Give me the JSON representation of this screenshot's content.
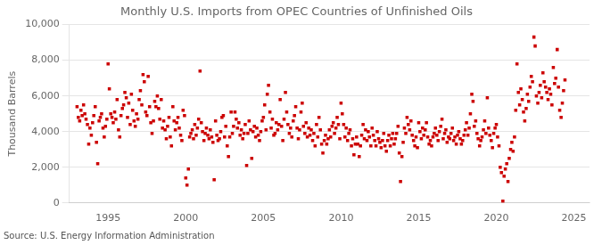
{
  "chart_data": {
    "type": "scatter",
    "title": "Monthly U.S. Imports from OPEC Countries of Unfinished Oils",
    "ylabel": "Thousand Barrels",
    "annotation": "Source: U.S. Energy Information Administration",
    "color": "#CC0000",
    "marker": "square",
    "grid": "y",
    "xlim": [
      1992.5,
      2026.0
    ],
    "xticks": [
      1995,
      2000,
      2005,
      2010,
      2015,
      2020,
      2025
    ],
    "ylim": [
      0,
      10000
    ],
    "yticks": [
      0,
      {
        "value": 2000,
        "label": "2,000"
      },
      {
        "value": 4000,
        "label": "4,000"
      },
      {
        "value": 6000,
        "label": "6,000"
      },
      {
        "value": 8000,
        "label": "8,000"
      },
      {
        "value": 10000,
        "label": "10,000"
      }
    ],
    "x": [
      1993.0,
      1993.08,
      1993.17,
      1993.25,
      1993.33,
      1993.42,
      1993.5,
      1993.58,
      1993.67,
      1993.75,
      1993.83,
      1993.92,
      1994.0,
      1994.08,
      1994.17,
      1994.25,
      1994.33,
      1994.42,
      1994.5,
      1994.58,
      1994.67,
      1994.75,
      1994.83,
      1994.92,
      1995.0,
      1995.08,
      1995.17,
      1995.25,
      1995.33,
      1995.42,
      1995.5,
      1995.58,
      1995.67,
      1995.75,
      1995.83,
      1995.92,
      1996.0,
      1996.08,
      1996.17,
      1996.25,
      1996.33,
      1996.42,
      1996.5,
      1996.58,
      1996.67,
      1996.75,
      1996.83,
      1996.92,
      1997.0,
      1997.08,
      1997.17,
      1997.25,
      1997.33,
      1997.42,
      1997.5,
      1997.58,
      1997.67,
      1997.75,
      1997.83,
      1997.92,
      1998.0,
      1998.08,
      1998.17,
      1998.25,
      1998.33,
      1998.42,
      1998.5,
      1998.58,
      1998.67,
      1998.75,
      1998.83,
      1998.92,
      1999.0,
      1999.08,
      1999.17,
      1999.25,
      1999.33,
      1999.42,
      1999.5,
      1999.58,
      1999.67,
      1999.75,
      1999.83,
      1999.92,
      2000.0,
      2000.08,
      2000.17,
      2000.25,
      2000.33,
      2000.42,
      2000.5,
      2000.58,
      2000.67,
      2000.75,
      2000.83,
      2000.92,
      2001.0,
      2001.08,
      2001.17,
      2001.25,
      2001.33,
      2001.42,
      2001.5,
      2001.58,
      2001.67,
      2001.75,
      2001.83,
      2001.92,
      2002.0,
      2002.08,
      2002.17,
      2002.25,
      2002.33,
      2002.42,
      2002.5,
      2002.58,
      2002.67,
      2002.75,
      2002.83,
      2002.92,
      2003.0,
      2003.08,
      2003.17,
      2003.25,
      2003.33,
      2003.42,
      2003.5,
      2003.58,
      2003.67,
      2003.75,
      2003.83,
      2003.92,
      2004.0,
      2004.08,
      2004.17,
      2004.25,
      2004.33,
      2004.42,
      2004.5,
      2004.58,
      2004.67,
      2004.75,
      2004.83,
      2004.92,
      2005.0,
      2005.08,
      2005.17,
      2005.25,
      2005.33,
      2005.42,
      2005.5,
      2005.58,
      2005.67,
      2005.75,
      2005.83,
      2005.92,
      2006.0,
      2006.08,
      2006.17,
      2006.25,
      2006.33,
      2006.42,
      2006.5,
      2006.58,
      2006.67,
      2006.75,
      2006.83,
      2006.92,
      2007.0,
      2007.08,
      2007.17,
      2007.25,
      2007.33,
      2007.42,
      2007.5,
      2007.58,
      2007.67,
      2007.75,
      2007.83,
      2007.92,
      2008.0,
      2008.08,
      2008.17,
      2008.25,
      2008.33,
      2008.42,
      2008.5,
      2008.58,
      2008.67,
      2008.75,
      2008.83,
      2008.92,
      2009.0,
      2009.08,
      2009.17,
      2009.25,
      2009.33,
      2009.42,
      2009.5,
      2009.58,
      2009.67,
      2009.75,
      2009.83,
      2009.92,
      2010.0,
      2010.08,
      2010.17,
      2010.25,
      2010.33,
      2010.42,
      2010.5,
      2010.58,
      2010.67,
      2010.75,
      2010.83,
      2010.92,
      2011.0,
      2011.08,
      2011.17,
      2011.25,
      2011.33,
      2011.42,
      2011.5,
      2011.58,
      2011.67,
      2011.75,
      2011.83,
      2011.92,
      2012.0,
      2012.08,
      2012.17,
      2012.25,
      2012.33,
      2012.42,
      2012.5,
      2012.58,
      2012.67,
      2012.75,
      2012.83,
      2012.92,
      2013.0,
      2013.08,
      2013.17,
      2013.25,
      2013.33,
      2013.42,
      2013.5,
      2013.58,
      2013.67,
      2013.75,
      2013.83,
      2013.92,
      2014.0,
      2014.08,
      2014.17,
      2014.25,
      2014.33,
      2014.42,
      2014.5,
      2014.58,
      2014.67,
      2014.75,
      2014.83,
      2014.92,
      2015.0,
      2015.08,
      2015.17,
      2015.25,
      2015.33,
      2015.42,
      2015.5,
      2015.58,
      2015.67,
      2015.75,
      2015.83,
      2015.92,
      2016.0,
      2016.08,
      2016.17,
      2016.25,
      2016.33,
      2016.42,
      2016.5,
      2016.58,
      2016.67,
      2016.75,
      2016.83,
      2016.92,
      2017.0,
      2017.08,
      2017.17,
      2017.25,
      2017.33,
      2017.42,
      2017.5,
      2017.58,
      2017.67,
      2017.75,
      2017.83,
      2017.92,
      2018.0,
      2018.08,
      2018.17,
      2018.25,
      2018.33,
      2018.42,
      2018.5,
      2018.58,
      2018.67,
      2018.75,
      2018.83,
      2018.92,
      2019.0,
      2019.08,
      2019.17,
      2019.25,
      2019.33,
      2019.42,
      2019.5,
      2019.58,
      2019.67,
      2019.75,
      2019.83,
      2019.92,
      2020.0,
      2020.08,
      2020.17,
      2020.25,
      2020.33,
      2020.42,
      2020.5,
      2020.58,
      2020.67,
      2020.75,
      2020.83,
      2020.92,
      2021.0,
      2021.08,
      2021.17,
      2021.25,
      2021.33,
      2021.42,
      2021.5,
      2021.58,
      2021.67,
      2021.75,
      2021.83,
      2021.92,
      2022.0,
      2022.08,
      2022.17,
      2022.25,
      2022.33,
      2022.42,
      2022.5,
      2022.58,
      2022.67,
      2022.75,
      2022.83,
      2022.92,
      2023.0,
      2023.08,
      2023.17,
      2023.25,
      2023.33,
      2023.42,
      2023.5,
      2023.58,
      2023.67,
      2023.75,
      2023.83,
      2023.92,
      2024.0,
      2024.08,
      2024.17,
      2024.25,
      2024.33,
      2024.42
    ],
    "values": [
      5400,
      4800,
      4600,
      5200,
      4900,
      5500,
      5000,
      4700,
      4400,
      3300,
      4200,
      3800,
      4500,
      4900,
      5400,
      3400,
      2200,
      4600,
      4800,
      5000,
      4200,
      3700,
      4300,
      4700,
      7800,
      6400,
      5000,
      4800,
      4500,
      5100,
      4700,
      5800,
      4100,
      3700,
      4900,
      5300,
      5500,
      6200,
      5900,
      4800,
      5600,
      4400,
      6100,
      5200,
      4600,
      4300,
      5000,
      4700,
      5800,
      6300,
      5500,
      7200,
      6800,
      5100,
      4900,
      7100,
      5400,
      4500,
      3900,
      4600,
      5700,
      5400,
      6000,
      5300,
      4700,
      5800,
      4200,
      4600,
      4100,
      3600,
      4300,
      4800,
      3700,
      3200,
      5400,
      4600,
      4100,
      4500,
      4800,
      4200,
      3800,
      3500,
      5200,
      4900,
      1400,
      1000,
      1900,
      3700,
      3900,
      4100,
      3600,
      4400,
      3800,
      4200,
      4700,
      7400,
      4500,
      4000,
      3500,
      3900,
      4200,
      3800,
      3600,
      4100,
      3700,
      3400,
      1300,
      4600,
      3800,
      3500,
      3600,
      4000,
      4800,
      4900,
      3700,
      4300,
      3200,
      2600,
      3700,
      5100,
      3900,
      4300,
      5100,
      4700,
      4200,
      4500,
      3800,
      4100,
      3600,
      3900,
      4400,
      2100,
      3900,
      4600,
      4100,
      2500,
      4000,
      4300,
      3700,
      4200,
      3800,
      3500,
      4000,
      4600,
      4800,
      5500,
      4100,
      6100,
      6600,
      5100,
      4200,
      4700,
      3800,
      3900,
      4500,
      4100,
      4400,
      5800,
      4300,
      3500,
      4700,
      6200,
      5100,
      4400,
      3900,
      4200,
      3700,
      4600,
      4900,
      5400,
      4200,
      3600,
      4100,
      5100,
      5600,
      4300,
      3900,
      4500,
      3700,
      4200,
      3800,
      4100,
      3500,
      3900,
      3200,
      4400,
      3700,
      4800,
      4100,
      3300,
      2800,
      3500,
      3800,
      3300,
      3600,
      4100,
      3700,
      4300,
      4500,
      3900,
      4200,
      4800,
      4400,
      3600,
      5600,
      5000,
      4400,
      3700,
      4200,
      3500,
      3900,
      4100,
      3200,
      3600,
      2700,
      3300,
      3700,
      3300,
      2600,
      3200,
      3800,
      4400,
      3600,
      4100,
      3500,
      4000,
      3700,
      3200,
      4200,
      3800,
      3500,
      3200,
      4000,
      3600,
      3400,
      3100,
      3500,
      3900,
      3200,
      2900,
      3500,
      3800,
      3200,
      3600,
      3900,
      3300,
      3600,
      3900,
      4300,
      2800,
      1200,
      2600,
      3400,
      4200,
      3900,
      4800,
      4400,
      4100,
      4600,
      3800,
      3500,
      3200,
      3700,
      3100,
      4500,
      4000,
      3600,
      4200,
      3800,
      4100,
      4500,
      3700,
      3300,
      3500,
      3200,
      3700,
      3900,
      4200,
      3800,
      3500,
      4000,
      4300,
      4700,
      3600,
      3900,
      4100,
      3400,
      3700,
      3600,
      3900,
      4200,
      3500,
      3700,
      3300,
      3800,
      4000,
      3600,
      3300,
      3500,
      3800,
      4100,
      4500,
      3800,
      4200,
      5000,
      6100,
      5700,
      4300,
      4600,
      3900,
      3600,
      3200,
      3500,
      3700,
      4100,
      4600,
      3900,
      5900,
      4200,
      3800,
      3500,
      3100,
      3900,
      4200,
      4400,
      3700,
      3200,
      2000,
      1700,
      100,
      1500,
      1900,
      2200,
      1200,
      2500,
      3000,
      3400,
      2900,
      3700,
      5200,
      7800,
      6200,
      5500,
      6400,
      5800,
      5100,
      4600,
      5300,
      6100,
      5700,
      6500,
      7100,
      6800,
      9300,
      8800,
      6000,
      5600,
      6200,
      6600,
      5900,
      7300,
      6800,
      6500,
      6200,
      5800,
      6400,
      6100,
      5500,
      7600,
      6700,
      7000,
      8600,
      6500,
      5200,
      4800,
      5600,
      6300,
      6900
    ]
  }
}
